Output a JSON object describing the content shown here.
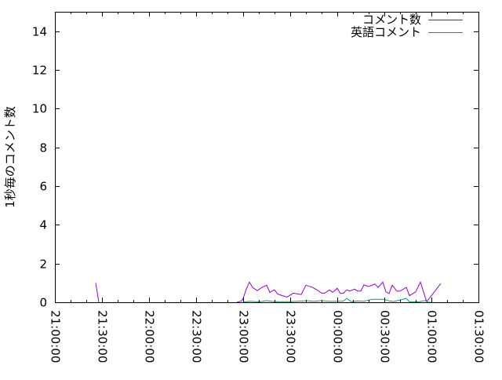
{
  "chart_data": {
    "type": "line",
    "title": "",
    "xlabel": "",
    "ylabel": "1秒毎のコメント数",
    "xlim": [
      "21:00:00",
      "01:30:00"
    ],
    "ylim": [
      0,
      15
    ],
    "x_ticks": [
      "21:00:00",
      "21:30:00",
      "22:00:00",
      "22:30:00",
      "23:00:00",
      "23:30:00",
      "00:00:00",
      "00:30:00",
      "01:00:00",
      "01:30:00"
    ],
    "y_ticks": [
      "0",
      "2",
      "4",
      "6",
      "8",
      "10",
      "12",
      "14"
    ],
    "y_tick_values": [
      0,
      2,
      4,
      6,
      8,
      10,
      12,
      14
    ],
    "grid": false,
    "legend_position": "top-right",
    "series": [
      {
        "name": "コメント数",
        "color": "#9400d3",
        "points": [
          [
            "21:26",
            1.0
          ],
          [
            "21:28",
            0
          ],
          [
            "22:56",
            0
          ],
          [
            "22:59",
            0.07
          ],
          [
            "23:00",
            0.2
          ],
          [
            "23:02",
            0.68
          ],
          [
            "23:04",
            1.04
          ],
          [
            "23:06",
            0.77
          ],
          [
            "23:09",
            0.6
          ],
          [
            "23:12",
            0.77
          ],
          [
            "23:15",
            0.88
          ],
          [
            "23:17",
            0.51
          ],
          [
            "23:20",
            0.64
          ],
          [
            "23:22",
            0.43
          ],
          [
            "23:25",
            0.34
          ],
          [
            "23:28",
            0.27
          ],
          [
            "23:32",
            0.47
          ],
          [
            "23:37",
            0.4
          ],
          [
            "23:40",
            0.88
          ],
          [
            "23:44",
            0.78
          ],
          [
            "23:47",
            0.64
          ],
          [
            "23:50",
            0.47
          ],
          [
            "23:52",
            0.47
          ],
          [
            "23:55",
            0.64
          ],
          [
            "23:57",
            0.51
          ],
          [
            "00:00",
            0.72
          ],
          [
            "00:02",
            0.45
          ],
          [
            "00:04",
            0.47
          ],
          [
            "00:06",
            0.64
          ],
          [
            "00:08",
            0.58
          ],
          [
            "00:11",
            0.68
          ],
          [
            "00:13",
            0.58
          ],
          [
            "00:15",
            0.58
          ],
          [
            "00:17",
            0.9
          ],
          [
            "00:20",
            0.81
          ],
          [
            "00:24",
            0.94
          ],
          [
            "00:26",
            0.77
          ],
          [
            "00:29",
            1.04
          ],
          [
            "00:31",
            0.54
          ],
          [
            "00:33",
            0.45
          ],
          [
            "00:35",
            0.88
          ],
          [
            "00:38",
            0.57
          ],
          [
            "00:40",
            0.57
          ],
          [
            "00:44",
            0.77
          ],
          [
            "00:46",
            0.34
          ],
          [
            "00:50",
            0.54
          ],
          [
            "00:53",
            1.04
          ],
          [
            "00:57",
            0.03
          ],
          [
            "01:06",
            0.97
          ]
        ]
      },
      {
        "name": "英語コメント",
        "color": "#009e73",
        "points": [
          [
            "23:00",
            0
          ],
          [
            "23:04",
            0.05
          ],
          [
            "23:10",
            0.02
          ],
          [
            "23:15",
            0.08
          ],
          [
            "23:20",
            0.03
          ],
          [
            "23:30",
            0.03
          ],
          [
            "23:40",
            0.08
          ],
          [
            "23:45",
            0.05
          ],
          [
            "23:50",
            0.08
          ],
          [
            "23:55",
            0.05
          ],
          [
            "00:00",
            0.05
          ],
          [
            "00:04",
            0.06
          ],
          [
            "00:06",
            0.2
          ],
          [
            "00:09",
            0.03
          ],
          [
            "00:13",
            0.07
          ],
          [
            "00:17",
            0.05
          ],
          [
            "00:22",
            0.15
          ],
          [
            "00:30",
            0.15
          ],
          [
            "00:33",
            0.07
          ],
          [
            "00:36",
            0.04
          ],
          [
            "00:44",
            0.2
          ],
          [
            "00:46",
            0.02
          ],
          [
            "00:52",
            0.02
          ],
          [
            "00:56",
            0.09
          ],
          [
            "00:58",
            0
          ],
          [
            "01:00",
            0
          ]
        ]
      }
    ]
  }
}
